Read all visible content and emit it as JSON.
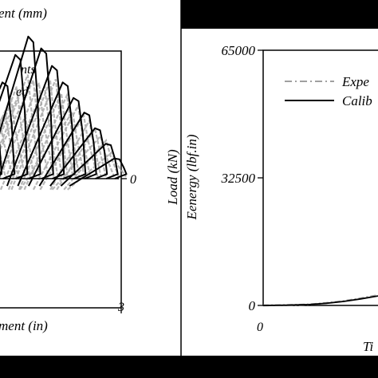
{
  "chart_data": [
    {
      "type": "line",
      "title": "",
      "top_xlabel": "ent (mm)",
      "xlabel": "ment (in)",
      "ylabel": "",
      "x_ticks_visible": [
        "3"
      ],
      "right_y_ticks": [
        "0"
      ],
      "legend_position": "top-left",
      "series": [
        {
          "name": "nts",
          "style": "gray-dashed",
          "color": "#a9a9a9",
          "envelope_x": [
            0.0,
            0.5,
            1.0,
            1.5,
            2.0,
            2.5,
            2.9
          ],
          "envelope_y": [
            0.5,
            0.95,
            1.25,
            1.05,
            0.8,
            0.55,
            0.25
          ]
        },
        {
          "name": "ed",
          "style": "black-solid",
          "color": "#000000",
          "peak_x": [
            0.0,
            0.3,
            0.6,
            0.9,
            1.2,
            1.45,
            1.7,
            1.95,
            2.2,
            2.45,
            2.7,
            2.9
          ],
          "peak_y": [
            0.85,
            1.05,
            1.35,
            1.55,
            1.42,
            1.23,
            1.05,
            0.88,
            0.72,
            0.55,
            0.38,
            0.22
          ]
        }
      ]
    },
    {
      "type": "line",
      "title": "",
      "xlabel": "Ti",
      "ylabel_outer": "Load (kN)",
      "ylabel_inner": "Eenergy (lbf.in)",
      "y_ticks": [
        "65000",
        "32500",
        "0"
      ],
      "x_ticks_visible": [
        "0"
      ],
      "ylim": [
        0,
        65000
      ],
      "legend_position": "top-right",
      "series": [
        {
          "name": "Expe",
          "style": "gray-dashdot",
          "color": "#a0a0a0"
        },
        {
          "name": "Calib",
          "style": "black-solid",
          "color": "#000000"
        }
      ],
      "x_fraction": [
        0.0,
        0.2,
        0.4,
        0.55,
        0.7,
        0.85,
        1.0
      ],
      "values": [
        0,
        80,
        250,
        600,
        1100,
        1800,
        2600
      ]
    }
  ]
}
